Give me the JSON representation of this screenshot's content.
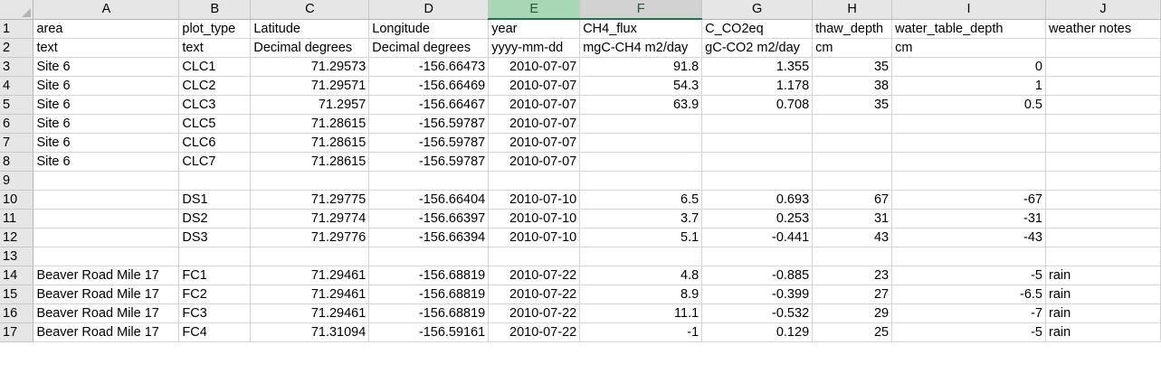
{
  "sheet": {
    "columns": [
      "A",
      "B",
      "C",
      "D",
      "E",
      "F",
      "G",
      "H",
      "I",
      "J"
    ],
    "selected_column": "E",
    "rows": [
      {
        "n": "1",
        "cells": [
          "area",
          "plot_type",
          "Latitude",
          "Longitude",
          "year",
          "CH4_flux",
          "C_CO2eq",
          "thaw_depth",
          "water_table_depth",
          "weather notes"
        ]
      },
      {
        "n": "2",
        "cells": [
          "text",
          "text",
          "Decimal degrees",
          "Decimal degrees",
          "yyyy-mm-dd",
          "mgC-CH4 m2/day",
          "gC-CO2 m2/day",
          "cm",
          "cm",
          ""
        ]
      },
      {
        "n": "3",
        "cells": [
          "Site 6",
          "CLC1",
          "71.29573",
          "-156.66473",
          "2010-07-07",
          "91.8",
          "1.355",
          "35",
          "0",
          ""
        ]
      },
      {
        "n": "4",
        "cells": [
          "Site 6",
          "CLC2",
          "71.29571",
          "-156.66469",
          "2010-07-07",
          "54.3",
          "1.178",
          "38",
          "1",
          ""
        ]
      },
      {
        "n": "5",
        "cells": [
          "Site 6",
          "CLC3",
          "71.2957",
          "-156.66467",
          "2010-07-07",
          "63.9",
          "0.708",
          "35",
          "0.5",
          ""
        ]
      },
      {
        "n": "6",
        "cells": [
          "Site 6",
          "CLC5",
          "71.28615",
          "-156.59787",
          "2010-07-07",
          "",
          "",
          "",
          "",
          ""
        ]
      },
      {
        "n": "7",
        "cells": [
          "Site 6",
          "CLC6",
          "71.28615",
          "-156.59787",
          "2010-07-07",
          "",
          "",
          "",
          "",
          ""
        ]
      },
      {
        "n": "8",
        "cells": [
          "Site 6",
          "CLC7",
          "71.28615",
          "-156.59787",
          "2010-07-07",
          "",
          "",
          "",
          "",
          ""
        ]
      },
      {
        "n": "9",
        "cells": [
          "",
          "",
          "",
          "",
          "",
          "",
          "",
          "",
          "",
          ""
        ]
      },
      {
        "n": "10",
        "cells": [
          "",
          "DS1",
          "71.29775",
          "-156.66404",
          "2010-07-10",
          "6.5",
          "0.693",
          "67",
          "-67",
          ""
        ]
      },
      {
        "n": "11",
        "cells": [
          "",
          "DS2",
          "71.29774",
          "-156.66397",
          "2010-07-10",
          "3.7",
          "0.253",
          "31",
          "-31",
          ""
        ]
      },
      {
        "n": "12",
        "cells": [
          "",
          "DS3",
          "71.29776",
          "-156.66394",
          "2010-07-10",
          "5.1",
          "-0.441",
          "43",
          "-43",
          ""
        ]
      },
      {
        "n": "13",
        "cells": [
          "",
          "",
          "",
          "",
          "",
          "",
          "",
          "",
          "",
          ""
        ]
      },
      {
        "n": "14",
        "cells": [
          "Beaver Road Mile 17",
          "FC1",
          "71.29461",
          "-156.68819",
          "2010-07-22",
          "4.8",
          "-0.885",
          "23",
          "-5",
          "rain"
        ]
      },
      {
        "n": "15",
        "cells": [
          "Beaver Road Mile 17",
          "FC2",
          "71.29461",
          "-156.68819",
          "2010-07-22",
          "8.9",
          "-0.399",
          "27",
          "-6.5",
          "rain"
        ]
      },
      {
        "n": "16",
        "cells": [
          "Beaver Road Mile 17",
          "FC3",
          "71.29461",
          "-156.68819",
          "2010-07-22",
          "11.1",
          "-0.532",
          "29",
          "-7",
          "rain"
        ]
      },
      {
        "n": "17",
        "cells": [
          "Beaver Road Mile 17",
          "FC4",
          "71.31094",
          "-156.59161",
          "2010-07-22",
          "-1",
          "0.129",
          "25",
          "-5",
          "rain"
        ]
      }
    ]
  }
}
